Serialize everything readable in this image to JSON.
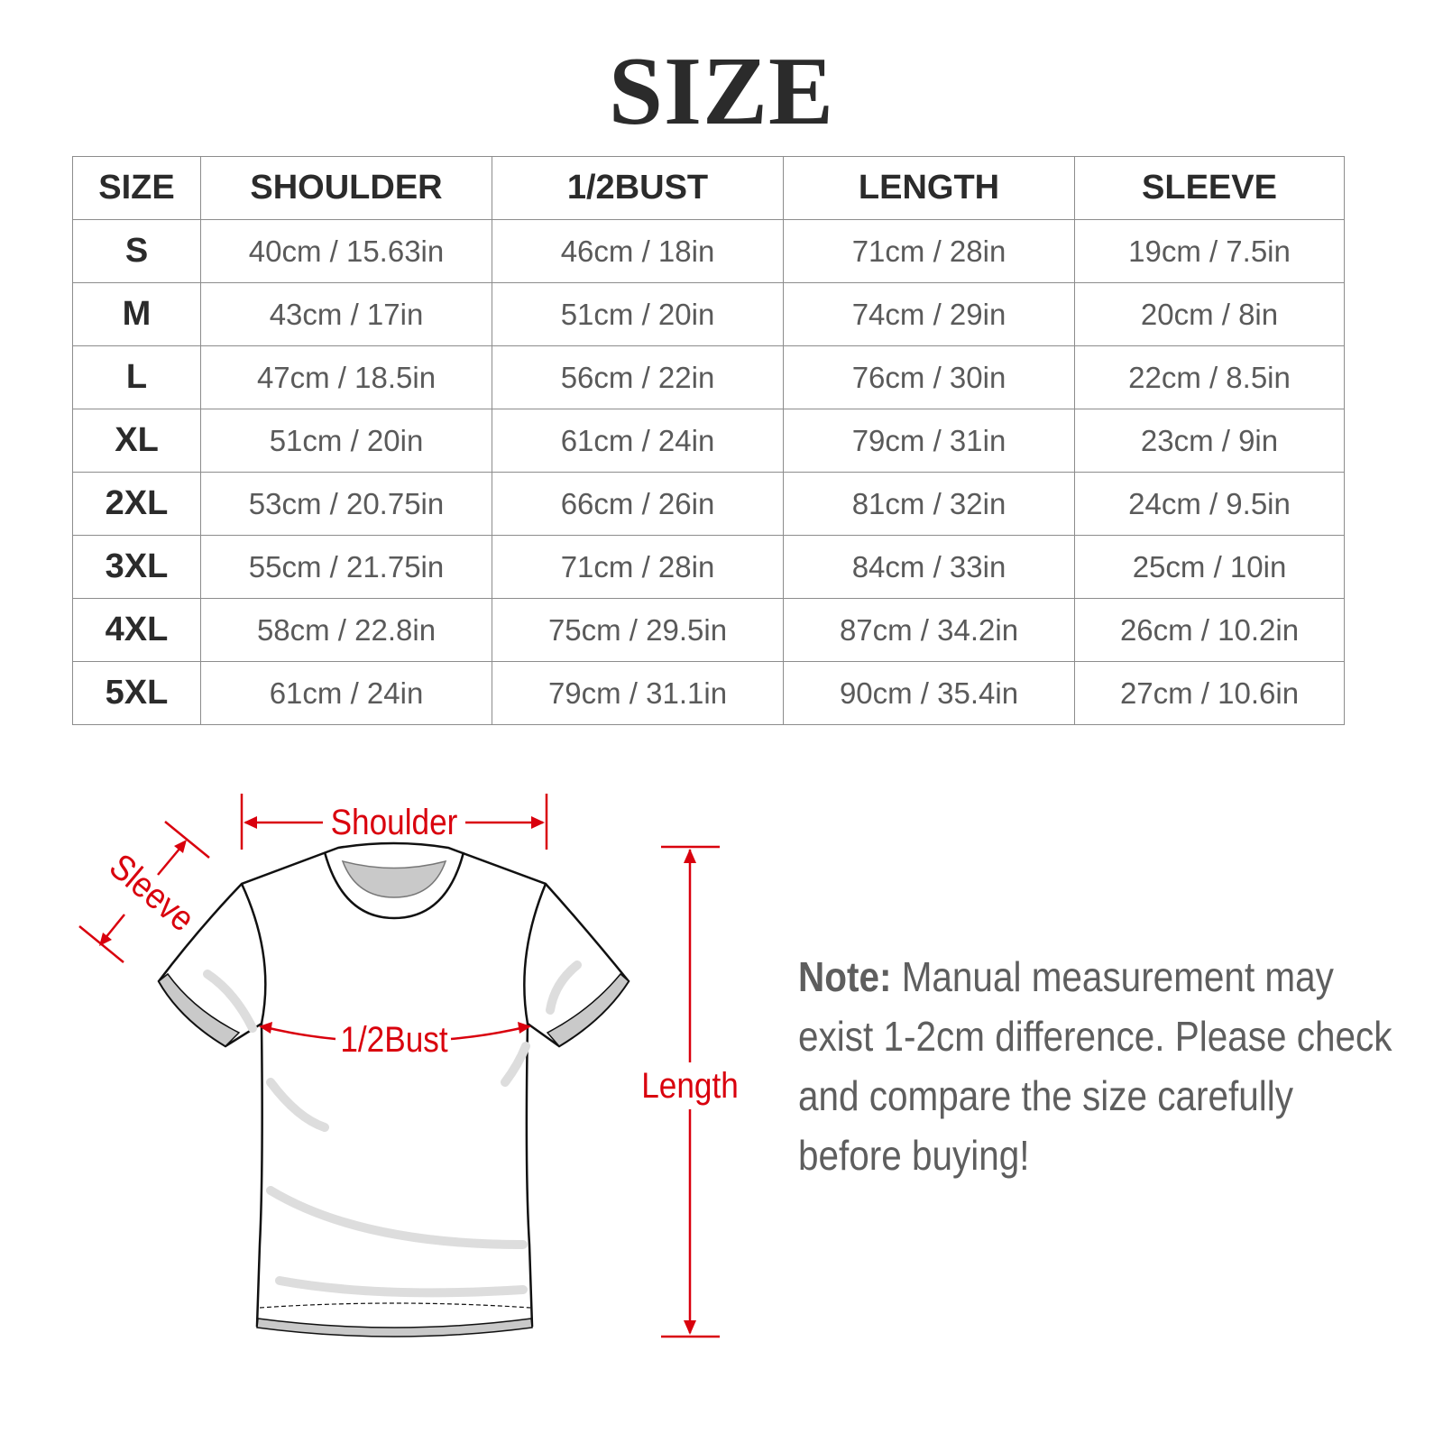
{
  "title": "SIZE",
  "table": {
    "headers": [
      "SIZE",
      "SHOULDER",
      "1/2BUST",
      "LENGTH",
      "SLEEVE"
    ],
    "rows": [
      [
        "S",
        "40cm / 15.63in",
        "46cm / 18in",
        "71cm / 28in",
        "19cm / 7.5in"
      ],
      [
        "M",
        "43cm / 17in",
        "51cm / 20in",
        "74cm / 29in",
        "20cm / 8in"
      ],
      [
        "L",
        "47cm / 18.5in",
        "56cm / 22in",
        "76cm / 30in",
        "22cm / 8.5in"
      ],
      [
        "XL",
        "51cm / 20in",
        "61cm / 24in",
        "79cm / 31in",
        "23cm / 9in"
      ],
      [
        "2XL",
        "53cm / 20.75in",
        "66cm / 26in",
        "81cm / 32in",
        "24cm / 9.5in"
      ],
      [
        "3XL",
        "55cm / 21.75in",
        "71cm / 28in",
        "84cm / 33in",
        "25cm / 10in"
      ],
      [
        "4XL",
        "58cm / 22.8in",
        "75cm / 29.5in",
        "87cm / 34.2in",
        "26cm / 10.2in"
      ],
      [
        "5XL",
        "61cm / 24in",
        "79cm / 31.1in",
        "90cm / 35.4in",
        "27cm / 10.6in"
      ]
    ]
  },
  "diagram": {
    "labels": {
      "shoulder": "Shoulder",
      "sleeve": "Sleeve",
      "bust": "1/2Bust",
      "length": "Length"
    },
    "accent_color": "#d9000d"
  },
  "note": {
    "label": "Note:",
    "text": " Manual measurement may exist 1-2cm difference. Please check and compare the size carefully before buying!"
  }
}
